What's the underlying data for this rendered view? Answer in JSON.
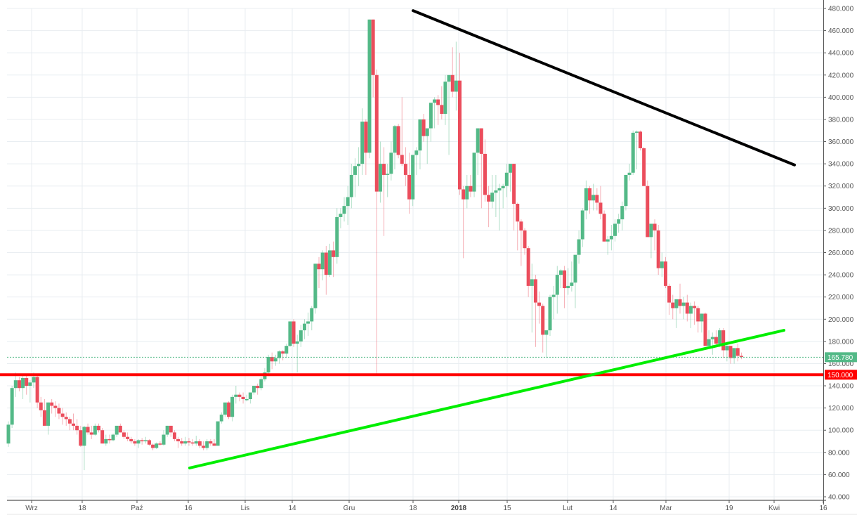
{
  "chart_data": {
    "type": "candlestick",
    "title": "",
    "xlabel": "",
    "ylabel": "",
    "ylim": [
      40,
      480
    ],
    "grid": true,
    "y_ticks": [
      40,
      60,
      80,
      100,
      120,
      140,
      160,
      180,
      200,
      220,
      240,
      260,
      280,
      300,
      320,
      340,
      360,
      380,
      400,
      420,
      440,
      460,
      480
    ],
    "y_tick_labels": [
      "40.000",
      "60.000",
      "80.000",
      "100.000",
      "120.000",
      "140.000",
      "160.000",
      "180.000",
      "200.000",
      "220.000",
      "240.000",
      "260.000",
      "280.000",
      "300.000",
      "320.000",
      "340.000",
      "360.000",
      "380.000",
      "400.000",
      "420.000",
      "440.000",
      "460.000",
      "480.000"
    ],
    "x_ticks": [
      {
        "label": "Wrz",
        "x": 45,
        "bold": false
      },
      {
        "label": "18",
        "x": 117,
        "bold": false
      },
      {
        "label": "Paź",
        "x": 195,
        "bold": false
      },
      {
        "label": "16",
        "x": 268,
        "bold": false
      },
      {
        "label": "Lis",
        "x": 349,
        "bold": false
      },
      {
        "label": "14",
        "x": 416,
        "bold": false
      },
      {
        "label": "Gru",
        "x": 497,
        "bold": false
      },
      {
        "label": "18",
        "x": 588,
        "bold": false
      },
      {
        "label": "2018",
        "x": 653,
        "bold": true
      },
      {
        "label": "15",
        "x": 722,
        "bold": false
      },
      {
        "label": "Lut",
        "x": 808,
        "bold": false
      },
      {
        "label": "14",
        "x": 873,
        "bold": false
      },
      {
        "label": "Mar",
        "x": 948,
        "bold": false
      },
      {
        "label": "19",
        "x": 1038,
        "bold": false
      },
      {
        "label": "Kwi",
        "x": 1102,
        "bold": false
      },
      {
        "label": "16",
        "x": 1172,
        "bold": false
      }
    ],
    "last_price": {
      "value": 165.78,
      "label": "165.780",
      "color": "#53b987"
    },
    "horizontal_level": {
      "value": 150,
      "label": "150.000",
      "color": "#ff0000"
    },
    "trendlines": [
      {
        "name": "resistance",
        "color": "#000000",
        "x1": 588,
        "y1": 478,
        "x2": 1131,
        "y2": 339
      },
      {
        "name": "support",
        "color": "#00ee00",
        "x1": 270,
        "y1": 66,
        "x2": 1116,
        "y2": 190
      }
    ],
    "colors": {
      "up": "#53b987",
      "down": "#eb4d5c",
      "grid": "#e8edf1",
      "axis": "#555555"
    },
    "candle_start_x": 12,
    "candle_spacing": 5.14,
    "ohlc": [
      [
        88,
        108,
        85,
        105
      ],
      [
        105,
        140,
        102,
        138
      ],
      [
        138,
        152,
        130,
        145
      ],
      [
        145,
        148,
        135,
        138
      ],
      [
        138,
        150,
        128,
        147
      ],
      [
        147,
        150,
        132,
        140
      ],
      [
        140,
        145,
        125,
        143
      ],
      [
        143,
        152,
        138,
        148
      ],
      [
        148,
        150,
        120,
        125
      ],
      [
        125,
        130,
        112,
        118
      ],
      [
        118,
        128,
        108,
        104
      ],
      [
        104,
        125,
        96,
        125
      ],
      [
        125,
        128,
        115,
        122
      ],
      [
        122,
        126,
        112,
        120
      ],
      [
        120,
        124,
        110,
        115
      ],
      [
        115,
        120,
        105,
        112
      ],
      [
        112,
        116,
        104,
        110
      ],
      [
        110,
        112,
        100,
        106
      ],
      [
        106,
        115,
        100,
        104
      ],
      [
        104,
        110,
        96,
        100
      ],
      [
        100,
        104,
        85,
        86
      ],
      [
        86,
        104,
        64,
        103
      ],
      [
        103,
        106,
        96,
        98
      ],
      [
        98,
        104,
        92,
        96
      ],
      [
        96,
        106,
        95,
        104
      ],
      [
        104,
        106,
        98,
        100
      ],
      [
        100,
        102,
        88,
        88
      ],
      [
        88,
        96,
        86,
        92
      ],
      [
        92,
        96,
        88,
        91
      ],
      [
        91,
        97,
        90,
        96
      ],
      [
        96,
        104,
        94,
        104
      ],
      [
        104,
        106,
        98,
        98
      ],
      [
        98,
        100,
        92,
        94
      ],
      [
        94,
        98,
        90,
        92
      ],
      [
        92,
        94,
        88,
        90
      ],
      [
        90,
        92,
        86,
        88
      ],
      [
        88,
        92,
        84,
        91
      ],
      [
        91,
        93,
        87,
        90
      ],
      [
        90,
        94,
        88,
        91
      ],
      [
        91,
        92,
        86,
        87
      ],
      [
        87,
        88,
        82,
        84
      ],
      [
        84,
        89,
        83,
        88
      ],
      [
        88,
        90,
        86,
        87
      ],
      [
        87,
        100,
        86,
        96
      ],
      [
        96,
        104,
        94,
        104
      ],
      [
        104,
        104,
        94,
        98
      ],
      [
        98,
        100,
        90,
        92
      ],
      [
        92,
        94,
        84,
        90
      ],
      [
        90,
        93,
        86,
        88
      ],
      [
        88,
        94,
        86,
        90
      ],
      [
        90,
        93,
        86,
        89
      ],
      [
        89,
        92,
        86,
        88
      ],
      [
        88,
        95,
        86,
        90
      ],
      [
        90,
        92,
        84,
        86
      ],
      [
        86,
        90,
        82,
        84
      ],
      [
        84,
        92,
        82,
        90
      ],
      [
        90,
        92,
        86,
        88
      ],
      [
        88,
        92,
        86,
        86
      ],
      [
        86,
        94,
        86,
        108
      ],
      [
        108,
        116,
        106,
        114
      ],
      [
        114,
        124,
        112,
        125
      ],
      [
        125,
        126,
        110,
        112
      ],
      [
        112,
        132,
        108,
        130
      ],
      [
        130,
        140,
        124,
        132
      ],
      [
        132,
        134,
        126,
        130
      ],
      [
        130,
        134,
        124,
        128
      ],
      [
        128,
        132,
        126,
        128
      ],
      [
        128,
        134,
        124,
        134
      ],
      [
        134,
        140,
        132,
        140
      ],
      [
        140,
        142,
        132,
        138
      ],
      [
        138,
        148,
        136,
        146
      ],
      [
        146,
        156,
        144,
        152
      ],
      [
        152,
        168,
        150,
        166
      ],
      [
        166,
        170,
        155,
        162
      ],
      [
        162,
        168,
        158,
        165
      ],
      [
        165,
        172,
        160,
        171
      ],
      [
        171,
        172,
        163,
        169
      ],
      [
        169,
        178,
        165,
        176
      ],
      [
        176,
        198,
        175,
        198
      ],
      [
        198,
        200,
        175,
        178
      ],
      [
        178,
        186,
        152,
        180
      ],
      [
        180,
        195,
        175,
        190
      ],
      [
        190,
        200,
        182,
        196
      ],
      [
        196,
        206,
        185,
        198
      ],
      [
        198,
        212,
        190,
        210
      ],
      [
        210,
        250,
        205,
        250
      ],
      [
        250,
        256,
        228,
        245
      ],
      [
        245,
        262,
        235,
        260
      ],
      [
        260,
        266,
        222,
        240
      ],
      [
        240,
        268,
        238,
        262
      ],
      [
        262,
        270,
        238,
        256
      ],
      [
        256,
        300,
        250,
        292
      ],
      [
        292,
        300,
        282,
        295
      ],
      [
        295,
        310,
        288,
        302
      ],
      [
        302,
        320,
        285,
        310
      ],
      [
        310,
        340,
        300,
        330
      ],
      [
        330,
        345,
        310,
        338
      ],
      [
        338,
        355,
        320,
        340
      ],
      [
        340,
        390,
        330,
        378
      ],
      [
        378,
        380,
        330,
        350
      ],
      [
        350,
        470,
        345,
        470
      ],
      [
        470,
        470,
        400,
        420
      ],
      [
        420,
        425,
        150,
        315
      ],
      [
        315,
        360,
        305,
        340
      ],
      [
        340,
        355,
        275,
        330
      ],
      [
        330,
        340,
        310,
        331
      ],
      [
        331,
        360,
        325,
        350
      ],
      [
        350,
        375,
        335,
        374
      ],
      [
        374,
        376,
        345,
        348
      ],
      [
        348,
        400,
        338,
        340
      ],
      [
        340,
        355,
        320,
        330
      ],
      [
        330,
        350,
        295,
        308
      ],
      [
        308,
        345,
        302,
        348
      ],
      [
        348,
        355,
        330,
        352
      ],
      [
        352,
        375,
        335,
        380
      ],
      [
        380,
        385,
        360,
        365
      ],
      [
        365,
        370,
        340,
        372
      ],
      [
        372,
        390,
        360,
        395
      ],
      [
        395,
        400,
        372,
        398
      ],
      [
        398,
        402,
        375,
        393
      ],
      [
        393,
        410,
        380,
        385
      ],
      [
        385,
        420,
        375,
        414
      ],
      [
        414,
        418,
        348,
        420
      ],
      [
        420,
        445,
        400,
        405
      ],
      [
        405,
        450,
        388,
        415
      ],
      [
        415,
        440,
        312,
        317
      ],
      [
        317,
        320,
        255,
        308
      ],
      [
        308,
        330,
        300,
        320
      ],
      [
        320,
        330,
        310,
        315
      ],
      [
        315,
        345,
        310,
        350
      ],
      [
        350,
        370,
        330,
        372
      ],
      [
        372,
        372,
        300,
        349
      ],
      [
        349,
        362,
        306,
        312
      ],
      [
        312,
        320,
        283,
        306
      ],
      [
        306,
        330,
        300,
        314
      ],
      [
        314,
        330,
        292,
        316
      ],
      [
        316,
        322,
        280,
        318
      ],
      [
        318,
        322,
        300,
        320
      ],
      [
        320,
        340,
        310,
        332
      ],
      [
        332,
        336,
        315,
        340
      ],
      [
        340,
        340,
        280,
        304
      ],
      [
        304,
        305,
        262,
        288
      ],
      [
        288,
        290,
        248,
        280
      ],
      [
        280,
        282,
        258,
        264
      ],
      [
        264,
        266,
        220,
        230
      ],
      [
        230,
        250,
        188,
        236
      ],
      [
        236,
        240,
        175,
        215
      ],
      [
        215,
        225,
        196,
        212
      ],
      [
        212,
        214,
        170,
        186
      ],
      [
        186,
        188,
        165,
        190
      ],
      [
        190,
        222,
        185,
        220
      ],
      [
        220,
        230,
        200,
        222
      ],
      [
        222,
        248,
        205,
        240
      ],
      [
        240,
        245,
        228,
        244
      ],
      [
        244,
        248,
        210,
        228
      ],
      [
        228,
        246,
        222,
        230
      ],
      [
        230,
        252,
        225,
        233
      ],
      [
        233,
        236,
        210,
        258
      ],
      [
        258,
        280,
        250,
        272
      ],
      [
        272,
        300,
        265,
        298
      ],
      [
        298,
        325,
        290,
        318
      ],
      [
        318,
        320,
        295,
        307
      ],
      [
        307,
        322,
        298,
        312
      ],
      [
        312,
        318,
        298,
        305
      ],
      [
        305,
        320,
        290,
        295
      ],
      [
        295,
        298,
        270,
        270
      ],
      [
        270,
        275,
        258,
        272
      ],
      [
        272,
        285,
        262,
        275
      ],
      [
        275,
        290,
        270,
        286
      ],
      [
        286,
        295,
        278,
        290
      ],
      [
        290,
        306,
        280,
        302
      ],
      [
        302,
        325,
        298,
        330
      ],
      [
        330,
        340,
        325,
        332
      ],
      [
        332,
        370,
        330,
        368
      ],
      [
        368,
        370,
        335,
        369
      ],
      [
        369,
        370,
        352,
        354
      ],
      [
        354,
        355,
        322,
        320
      ],
      [
        320,
        325,
        290,
        274
      ],
      [
        274,
        276,
        255,
        286
      ],
      [
        286,
        290,
        262,
        280
      ],
      [
        280,
        285,
        240,
        246
      ],
      [
        246,
        260,
        238,
        252
      ],
      [
        252,
        256,
        228,
        230
      ],
      [
        230,
        232,
        204,
        215
      ],
      [
        215,
        222,
        200,
        210
      ],
      [
        210,
        218,
        192,
        218
      ],
      [
        218,
        232,
        205,
        212
      ],
      [
        212,
        220,
        200,
        215
      ],
      [
        215,
        222,
        198,
        205
      ],
      [
        205,
        215,
        192,
        212
      ],
      [
        212,
        216,
        195,
        210
      ],
      [
        210,
        212,
        188,
        198
      ],
      [
        198,
        205,
        188,
        205
      ],
      [
        205,
        206,
        180,
        176
      ],
      [
        176,
        190,
        178,
        182
      ],
      [
        182,
        188,
        168,
        184
      ],
      [
        184,
        190,
        175,
        178
      ],
      [
        178,
        192,
        175,
        190
      ],
      [
        190,
        192,
        165,
        172
      ],
      [
        172,
        178,
        162,
        176
      ],
      [
        176,
        176,
        160,
        165
      ],
      [
        165,
        172,
        160,
        174
      ],
      [
        174,
        178,
        162,
        167
      ],
      [
        167,
        170,
        164,
        166
      ]
    ]
  },
  "price_axis": {
    "last_price_label": "165.780",
    "level_label": "150.000"
  }
}
